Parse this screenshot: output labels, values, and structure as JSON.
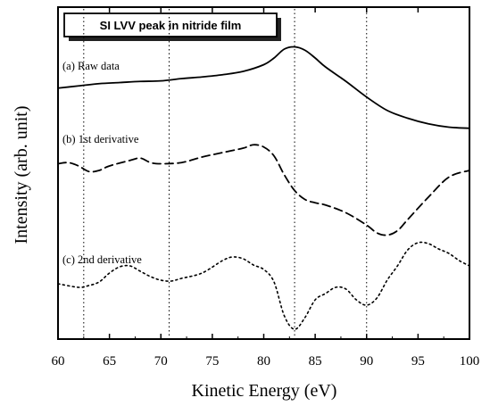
{
  "chart_data": {
    "type": "line",
    "title": "SI LVV peak in nitride film",
    "xlabel": "Kinetic Energy (eV)",
    "ylabel": "Intensity (arb. unit)",
    "xlim": [
      60,
      100
    ],
    "x_ticks": [
      60,
      65,
      70,
      75,
      80,
      85,
      90,
      95,
      100
    ],
    "reference_lines_x": [
      62.5,
      70.8,
      83.0,
      90.0
    ],
    "series": [
      {
        "name": "(a) Raw data",
        "style": "solid",
        "points": [
          [
            60,
            0.29
          ],
          [
            62,
            0.31
          ],
          [
            64,
            0.33
          ],
          [
            66,
            0.34
          ],
          [
            68,
            0.35
          ],
          [
            70,
            0.355
          ],
          [
            72,
            0.375
          ],
          [
            74,
            0.39
          ],
          [
            76,
            0.41
          ],
          [
            78,
            0.44
          ],
          [
            80,
            0.5
          ],
          [
            81,
            0.56
          ],
          [
            82,
            0.64
          ],
          [
            83,
            0.66
          ],
          [
            84,
            0.63
          ],
          [
            85,
            0.56
          ],
          [
            86,
            0.48
          ],
          [
            88,
            0.35
          ],
          [
            90,
            0.21
          ],
          [
            92,
            0.09
          ],
          [
            94,
            0.02
          ],
          [
            96,
            -0.03
          ],
          [
            98,
            -0.06
          ],
          [
            100,
            -0.07
          ]
        ]
      },
      {
        "name": "(b) 1st derivative",
        "style": "dashed",
        "points": [
          [
            60,
            -0.06
          ],
          [
            61,
            -0.05
          ],
          [
            62,
            -0.08
          ],
          [
            63,
            -0.13
          ],
          [
            64,
            -0.12
          ],
          [
            65,
            -0.08
          ],
          [
            67,
            -0.03
          ],
          [
            68,
            -0.01
          ],
          [
            69,
            -0.05
          ],
          [
            70,
            -0.06
          ],
          [
            72,
            -0.05
          ],
          [
            74,
            0.0
          ],
          [
            76,
            0.04
          ],
          [
            78,
            0.08
          ],
          [
            79,
            0.11
          ],
          [
            80,
            0.09
          ],
          [
            81,
            0.01
          ],
          [
            82,
            -0.16
          ],
          [
            83,
            -0.3
          ],
          [
            84,
            -0.38
          ],
          [
            85,
            -0.41
          ],
          [
            86,
            -0.43
          ],
          [
            88,
            -0.5
          ],
          [
            90,
            -0.61
          ],
          [
            91,
            -0.68
          ],
          [
            92,
            -0.7
          ],
          [
            93,
            -0.66
          ],
          [
            94,
            -0.56
          ],
          [
            96,
            -0.36
          ],
          [
            98,
            -0.18
          ],
          [
            100,
            -0.12
          ]
        ]
      },
      {
        "name": "(c) 2nd derivative",
        "style": "dotted",
        "points": [
          [
            60,
            -0.44
          ],
          [
            62,
            -0.48
          ],
          [
            63,
            -0.46
          ],
          [
            64,
            -0.42
          ],
          [
            65,
            -0.32
          ],
          [
            66,
            -0.25
          ],
          [
            67,
            -0.24
          ],
          [
            68,
            -0.3
          ],
          [
            69,
            -0.36
          ],
          [
            70,
            -0.4
          ],
          [
            71,
            -0.41
          ],
          [
            72,
            -0.38
          ],
          [
            74,
            -0.32
          ],
          [
            76,
            -0.18
          ],
          [
            77,
            -0.14
          ],
          [
            78,
            -0.16
          ],
          [
            79,
            -0.23
          ],
          [
            80,
            -0.28
          ],
          [
            81,
            -0.42
          ],
          [
            82,
            -0.8
          ],
          [
            83,
            -0.95
          ],
          [
            84,
            -0.82
          ],
          [
            85,
            -0.62
          ],
          [
            86,
            -0.55
          ],
          [
            87,
            -0.48
          ],
          [
            88,
            -0.5
          ],
          [
            89,
            -0.62
          ],
          [
            90,
            -0.68
          ],
          [
            91,
            -0.6
          ],
          [
            92,
            -0.4
          ],
          [
            93,
            -0.24
          ],
          [
            94,
            -0.06
          ],
          [
            95,
            0.02
          ],
          [
            96,
            0.01
          ],
          [
            97,
            -0.05
          ],
          [
            98,
            -0.1
          ],
          [
            99,
            -0.18
          ],
          [
            100,
            -0.24
          ]
        ]
      }
    ],
    "grid": false,
    "legend": "none"
  }
}
